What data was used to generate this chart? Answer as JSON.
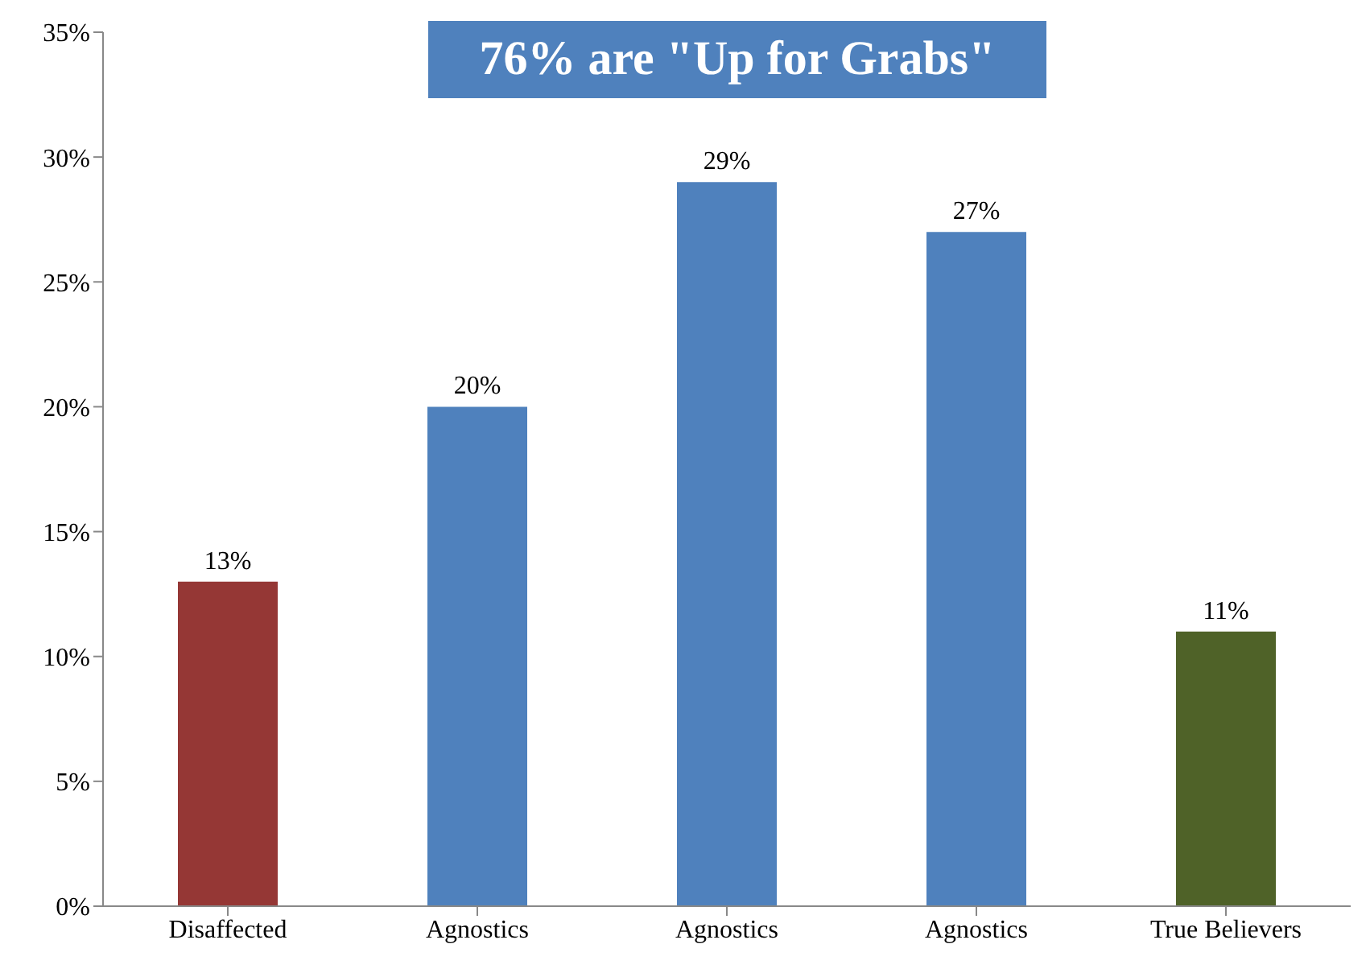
{
  "chart_data": {
    "type": "bar",
    "title": "76% are \"Up for Grabs\"",
    "categories": [
      "Disaffected",
      "Agnostics",
      "Agnostics",
      "Agnostics",
      "True Believers"
    ],
    "values": [
      13,
      20,
      29,
      27,
      11
    ],
    "colors": [
      "#953735",
      "#4f81bd",
      "#4f81bd",
      "#4f81bd",
      "#4f6228"
    ],
    "value_labels": [
      "13%",
      "20%",
      "29%",
      "27%",
      "11%"
    ],
    "ylim": [
      0,
      35
    ],
    "yticks": [
      {
        "value": 0,
        "label": "0%"
      },
      {
        "value": 5,
        "label": "5%"
      },
      {
        "value": 10,
        "label": "10%"
      },
      {
        "value": 15,
        "label": "15%"
      },
      {
        "value": 20,
        "label": "20%"
      },
      {
        "value": 25,
        "label": "25%"
      },
      {
        "value": 30,
        "label": "30%"
      },
      {
        "value": 35,
        "label": "35%"
      }
    ],
    "grid": false
  }
}
